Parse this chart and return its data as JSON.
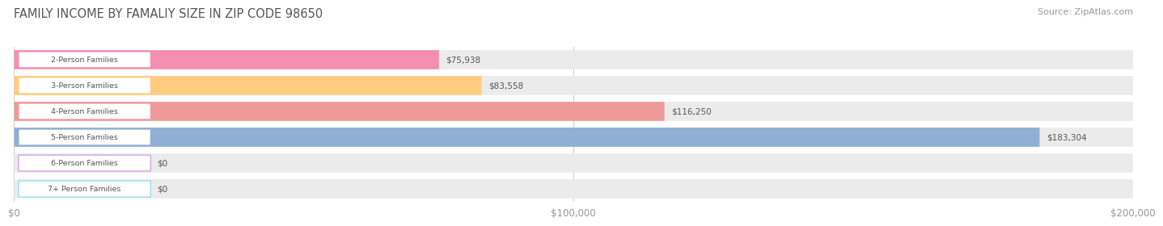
{
  "title": "FAMILY INCOME BY FAMALIY SIZE IN ZIP CODE 98650",
  "source": "Source: ZipAtlas.com",
  "categories": [
    "2-Person Families",
    "3-Person Families",
    "4-Person Families",
    "5-Person Families",
    "6-Person Families",
    "7+ Person Families"
  ],
  "values": [
    75938,
    83558,
    116250,
    183304,
    0,
    0
  ],
  "value_labels": [
    "$75,938",
    "$83,558",
    "$116,250",
    "$183,304",
    "$0",
    "$0"
  ],
  "bar_colors": [
    "#f48fb1",
    "#ffcc80",
    "#ef9a9a",
    "#90afd4",
    "#ce93d8",
    "#80deea"
  ],
  "bar_bg_color": "#ebebeb",
  "xmax": 200000,
  "xtick_values": [
    0,
    100000,
    200000
  ],
  "xtick_labels": [
    "$0",
    "$100,000",
    "$200,000"
  ],
  "title_color": "#555555",
  "source_color": "#999999",
  "label_text_color": "#555555",
  "value_text_color_outside": "#555555",
  "value_text_color_white": "#ffffff",
  "bar_height": 0.62,
  "background_color": "#ffffff"
}
